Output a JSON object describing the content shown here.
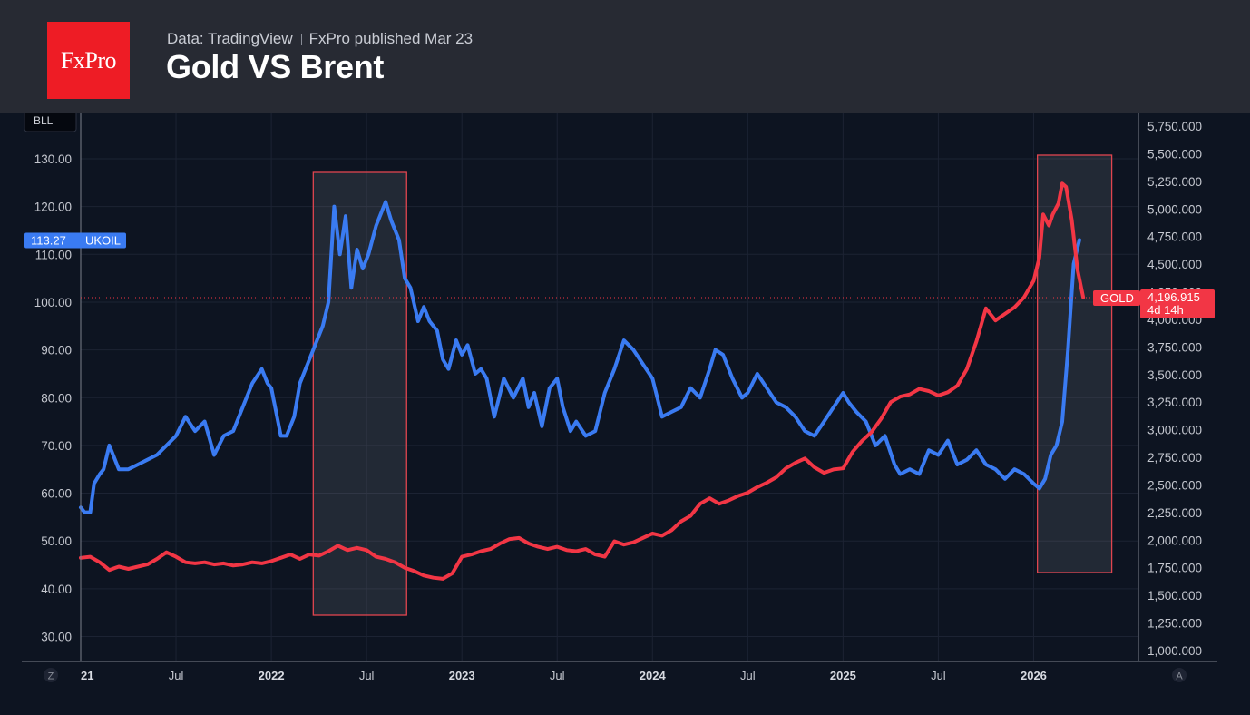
{
  "header": {
    "logo_text": "FxPro",
    "source": "Data: TradingView",
    "published": "FxPro published Mar 23",
    "title": "Gold VS Brent"
  },
  "chart_data": {
    "type": "line",
    "title": "Gold VS Brent",
    "left_axis": {
      "unit_label": "BLL",
      "min": 25,
      "max": 140,
      "ticks": [
        30,
        40,
        50,
        60,
        70,
        80,
        90,
        100,
        110,
        120,
        130
      ],
      "tick_labels": [
        "30.00",
        "40.00",
        "50.00",
        "60.00",
        "70.00",
        "80.00",
        "90.00",
        "100.00",
        "110.00",
        "120.00",
        "130.00"
      ]
    },
    "right_axis": {
      "min": 950,
      "max": 5700,
      "ticks": [
        1000,
        1250,
        1500,
        1750,
        2000,
        2250,
        2500,
        2750,
        3000,
        3250,
        3500,
        3750,
        4000,
        4250,
        4500,
        4750,
        5000,
        5250,
        5500,
        5750
      ],
      "tick_labels": [
        "1,000.000",
        "1,250.000",
        "1,500.000",
        "1,750.000",
        "2,000.000",
        "2,250.000",
        "2,500.000",
        "2,750.000",
        "3,000.000",
        "3,250.000",
        "3,500.000",
        "3,750.000",
        "4,000.000",
        "4,250.000",
        "4,500.000",
        "4,750.000",
        "5,000.000",
        "5,250.000",
        "5,500.000",
        "5,750.000"
      ]
    },
    "x_axis": {
      "start": 2021.0,
      "end": 2026.55,
      "ticks": [
        {
          "t": 2021.0,
          "label": "21",
          "bold": true
        },
        {
          "t": 2021.5,
          "label": "Jul",
          "bold": false
        },
        {
          "t": 2022.0,
          "label": "2022",
          "bold": true
        },
        {
          "t": 2022.5,
          "label": "Jul",
          "bold": false
        },
        {
          "t": 2023.0,
          "label": "2023",
          "bold": true
        },
        {
          "t": 2023.5,
          "label": "Jul",
          "bold": false
        },
        {
          "t": 2024.0,
          "label": "2024",
          "bold": true
        },
        {
          "t": 2024.5,
          "label": "Jul",
          "bold": false
        },
        {
          "t": 2025.0,
          "label": "2025",
          "bold": true
        },
        {
          "t": 2025.5,
          "label": "Jul",
          "bold": false
        },
        {
          "t": 2026.0,
          "label": "2026",
          "bold": true
        }
      ]
    },
    "grid": true,
    "series": [
      {
        "name": "UKOIL",
        "axis": "left",
        "color": "#3a7bf2",
        "last_label": "113.27",
        "points": [
          [
            2021.0,
            57
          ],
          [
            2021.02,
            56
          ],
          [
            2021.05,
            56
          ],
          [
            2021.07,
            62
          ],
          [
            2021.1,
            64
          ],
          [
            2021.12,
            65
          ],
          [
            2021.15,
            70
          ],
          [
            2021.17,
            68
          ],
          [
            2021.2,
            65
          ],
          [
            2021.25,
            65
          ],
          [
            2021.3,
            66
          ],
          [
            2021.35,
            67
          ],
          [
            2021.4,
            68
          ],
          [
            2021.45,
            70
          ],
          [
            2021.5,
            72
          ],
          [
            2021.55,
            76
          ],
          [
            2021.6,
            73
          ],
          [
            2021.65,
            75
          ],
          [
            2021.7,
            68
          ],
          [
            2021.75,
            72
          ],
          [
            2021.8,
            73
          ],
          [
            2021.85,
            78
          ],
          [
            2021.9,
            83
          ],
          [
            2021.95,
            86
          ],
          [
            2021.98,
            83
          ],
          [
            2022.0,
            82
          ],
          [
            2022.05,
            72
          ],
          [
            2022.08,
            72
          ],
          [
            2022.12,
            76
          ],
          [
            2022.15,
            83
          ],
          [
            2022.2,
            88
          ],
          [
            2022.23,
            91
          ],
          [
            2022.27,
            95
          ],
          [
            2022.3,
            100
          ],
          [
            2022.33,
            120
          ],
          [
            2022.36,
            110
          ],
          [
            2022.39,
            118
          ],
          [
            2022.42,
            103
          ],
          [
            2022.45,
            111
          ],
          [
            2022.48,
            107
          ],
          [
            2022.51,
            110
          ],
          [
            2022.55,
            116
          ],
          [
            2022.6,
            121
          ],
          [
            2022.63,
            117
          ],
          [
            2022.67,
            113
          ],
          [
            2022.7,
            105
          ],
          [
            2022.73,
            103
          ],
          [
            2022.77,
            96
          ],
          [
            2022.8,
            99
          ],
          [
            2022.83,
            96
          ],
          [
            2022.87,
            94
          ],
          [
            2022.9,
            88
          ],
          [
            2022.93,
            86
          ],
          [
            2022.97,
            92
          ],
          [
            2023.0,
            89
          ],
          [
            2023.03,
            91
          ],
          [
            2023.07,
            85
          ],
          [
            2023.1,
            86
          ],
          [
            2023.13,
            84
          ],
          [
            2023.17,
            76
          ],
          [
            2023.22,
            84
          ],
          [
            2023.27,
            80
          ],
          [
            2023.32,
            84
          ],
          [
            2023.35,
            78
          ],
          [
            2023.38,
            81
          ],
          [
            2023.42,
            74
          ],
          [
            2023.46,
            82
          ],
          [
            2023.5,
            84
          ],
          [
            2023.53,
            78
          ],
          [
            2023.57,
            73
          ],
          [
            2023.6,
            75
          ],
          [
            2023.65,
            72
          ],
          [
            2023.7,
            73
          ],
          [
            2023.75,
            81
          ],
          [
            2023.8,
            86
          ],
          [
            2023.85,
            92
          ],
          [
            2023.9,
            90
          ],
          [
            2023.95,
            87
          ],
          [
            2024.0,
            84
          ],
          [
            2024.05,
            76
          ],
          [
            2024.1,
            77
          ],
          [
            2024.15,
            78
          ],
          [
            2024.2,
            82
          ],
          [
            2024.25,
            80
          ],
          [
            2024.3,
            86
          ],
          [
            2024.33,
            90
          ],
          [
            2024.37,
            89
          ],
          [
            2024.42,
            84
          ],
          [
            2024.47,
            80
          ],
          [
            2024.5,
            81
          ],
          [
            2024.55,
            85
          ],
          [
            2024.6,
            82
          ],
          [
            2024.65,
            79
          ],
          [
            2024.7,
            78
          ],
          [
            2024.75,
            76
          ],
          [
            2024.8,
            73
          ],
          [
            2024.85,
            72
          ],
          [
            2024.9,
            75
          ],
          [
            2024.95,
            78
          ],
          [
            2025.0,
            81
          ],
          [
            2025.03,
            79
          ],
          [
            2025.07,
            77
          ],
          [
            2025.12,
            75
          ],
          [
            2025.17,
            70
          ],
          [
            2025.22,
            72
          ],
          [
            2025.27,
            66
          ],
          [
            2025.3,
            64
          ],
          [
            2025.35,
            65
          ],
          [
            2025.4,
            64
          ],
          [
            2025.45,
            69
          ],
          [
            2025.5,
            68
          ],
          [
            2025.55,
            71
          ],
          [
            2025.6,
            66
          ],
          [
            2025.65,
            67
          ],
          [
            2025.7,
            69
          ],
          [
            2025.75,
            66
          ],
          [
            2025.8,
            65
          ],
          [
            2025.85,
            63
          ],
          [
            2025.9,
            65
          ],
          [
            2025.95,
            64
          ],
          [
            2026.0,
            62
          ],
          [
            2026.03,
            61
          ],
          [
            2026.06,
            63
          ],
          [
            2026.09,
            68
          ],
          [
            2026.12,
            70
          ],
          [
            2026.15,
            75
          ],
          [
            2026.18,
            90
          ],
          [
            2026.21,
            108
          ],
          [
            2026.24,
            113
          ]
        ]
      },
      {
        "name": "GOLD",
        "axis": "right",
        "color": "#f23645",
        "last_label": "4,196.915",
        "last_sub": "4d 14h",
        "points": [
          [
            2021.0,
            1840
          ],
          [
            2021.05,
            1850
          ],
          [
            2021.1,
            1800
          ],
          [
            2021.15,
            1730
          ],
          [
            2021.2,
            1760
          ],
          [
            2021.25,
            1740
          ],
          [
            2021.3,
            1760
          ],
          [
            2021.35,
            1780
          ],
          [
            2021.4,
            1830
          ],
          [
            2021.45,
            1890
          ],
          [
            2021.5,
            1850
          ],
          [
            2021.55,
            1800
          ],
          [
            2021.6,
            1790
          ],
          [
            2021.65,
            1800
          ],
          [
            2021.7,
            1780
          ],
          [
            2021.75,
            1790
          ],
          [
            2021.8,
            1770
          ],
          [
            2021.85,
            1780
          ],
          [
            2021.9,
            1800
          ],
          [
            2021.95,
            1790
          ],
          [
            2022.0,
            1810
          ],
          [
            2022.05,
            1840
          ],
          [
            2022.1,
            1870
          ],
          [
            2022.15,
            1830
          ],
          [
            2022.2,
            1870
          ],
          [
            2022.25,
            1860
          ],
          [
            2022.3,
            1900
          ],
          [
            2022.35,
            1950
          ],
          [
            2022.4,
            1910
          ],
          [
            2022.45,
            1930
          ],
          [
            2022.5,
            1910
          ],
          [
            2022.55,
            1850
          ],
          [
            2022.6,
            1830
          ],
          [
            2022.65,
            1800
          ],
          [
            2022.7,
            1750
          ],
          [
            2022.75,
            1720
          ],
          [
            2022.8,
            1680
          ],
          [
            2022.85,
            1660
          ],
          [
            2022.9,
            1650
          ],
          [
            2022.95,
            1700
          ],
          [
            2023.0,
            1850
          ],
          [
            2023.05,
            1870
          ],
          [
            2023.1,
            1900
          ],
          [
            2023.15,
            1920
          ],
          [
            2023.2,
            1970
          ],
          [
            2023.25,
            2010
          ],
          [
            2023.3,
            2020
          ],
          [
            2023.35,
            1970
          ],
          [
            2023.4,
            1940
          ],
          [
            2023.45,
            1920
          ],
          [
            2023.5,
            1940
          ],
          [
            2023.55,
            1910
          ],
          [
            2023.6,
            1900
          ],
          [
            2023.65,
            1920
          ],
          [
            2023.7,
            1870
          ],
          [
            2023.75,
            1850
          ],
          [
            2023.8,
            1990
          ],
          [
            2023.85,
            1960
          ],
          [
            2023.9,
            1980
          ],
          [
            2024.0,
            2060
          ],
          [
            2024.05,
            2040
          ],
          [
            2024.1,
            2090
          ],
          [
            2024.15,
            2170
          ],
          [
            2024.2,
            2220
          ],
          [
            2024.25,
            2330
          ],
          [
            2024.3,
            2380
          ],
          [
            2024.35,
            2330
          ],
          [
            2024.4,
            2360
          ],
          [
            2024.45,
            2400
          ],
          [
            2024.5,
            2430
          ],
          [
            2024.55,
            2480
          ],
          [
            2024.6,
            2520
          ],
          [
            2024.65,
            2570
          ],
          [
            2024.7,
            2650
          ],
          [
            2024.75,
            2700
          ],
          [
            2024.8,
            2740
          ],
          [
            2024.85,
            2660
          ],
          [
            2024.9,
            2610
          ],
          [
            2024.95,
            2640
          ],
          [
            2025.0,
            2650
          ],
          [
            2025.05,
            2800
          ],
          [
            2025.1,
            2900
          ],
          [
            2025.15,
            2980
          ],
          [
            2025.2,
            3100
          ],
          [
            2025.25,
            3250
          ],
          [
            2025.3,
            3300
          ],
          [
            2025.35,
            3320
          ],
          [
            2025.4,
            3370
          ],
          [
            2025.45,
            3350
          ],
          [
            2025.5,
            3310
          ],
          [
            2025.55,
            3340
          ],
          [
            2025.6,
            3400
          ],
          [
            2025.65,
            3550
          ],
          [
            2025.7,
            3800
          ],
          [
            2025.75,
            4100
          ],
          [
            2025.8,
            3990
          ],
          [
            2025.85,
            4050
          ],
          [
            2025.9,
            4110
          ],
          [
            2025.95,
            4200
          ],
          [
            2026.0,
            4350
          ],
          [
            2026.03,
            4560
          ],
          [
            2026.05,
            4950
          ],
          [
            2026.08,
            4850
          ],
          [
            2026.1,
            4950
          ],
          [
            2026.13,
            5050
          ],
          [
            2026.15,
            5230
          ],
          [
            2026.17,
            5200
          ],
          [
            2026.2,
            4900
          ],
          [
            2026.23,
            4450
          ],
          [
            2026.26,
            4200
          ]
        ]
      }
    ],
    "highlights": [
      [
        2022.22,
        2022.71
      ],
      [
        2026.02,
        2026.41
      ]
    ],
    "crosshair_price": 4196.915,
    "corner_labels": {
      "left": "Z",
      "right": "A"
    }
  }
}
